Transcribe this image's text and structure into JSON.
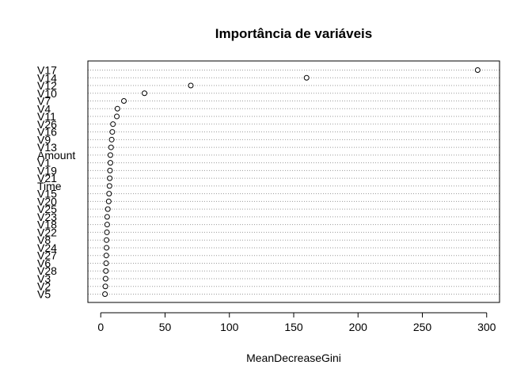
{
  "chart_data": {
    "type": "scatter",
    "title": "Importância de variáveis",
    "xlabel": "MeanDecreaseGini",
    "ylabel": "",
    "xlim": [
      -10,
      310
    ],
    "xticks": [
      0,
      50,
      100,
      150,
      200,
      250,
      300
    ],
    "grid": "dotted horizontal lines per variable",
    "point_style": "open circle",
    "categories": [
      "V17",
      "V14",
      "V12",
      "V10",
      "V7",
      "V4",
      "V11",
      "V26",
      "V16",
      "V9",
      "V13",
      "Amount",
      "V1",
      "V19",
      "V21",
      "Time",
      "V15",
      "V20",
      "V25",
      "V23",
      "V18",
      "V22",
      "V8",
      "V24",
      "V27",
      "V6",
      "V28",
      "V3",
      "V2",
      "V5"
    ],
    "values": [
      293,
      160,
      70,
      34,
      18,
      13,
      12.5,
      9.5,
      9,
      8.5,
      8,
      7.5,
      7.5,
      7.2,
      7,
      6.8,
      6.5,
      6.2,
      5.5,
      5,
      5,
      4.8,
      4.5,
      4.5,
      4.3,
      4.2,
      4,
      3.8,
      3.6,
      3.3
    ]
  }
}
